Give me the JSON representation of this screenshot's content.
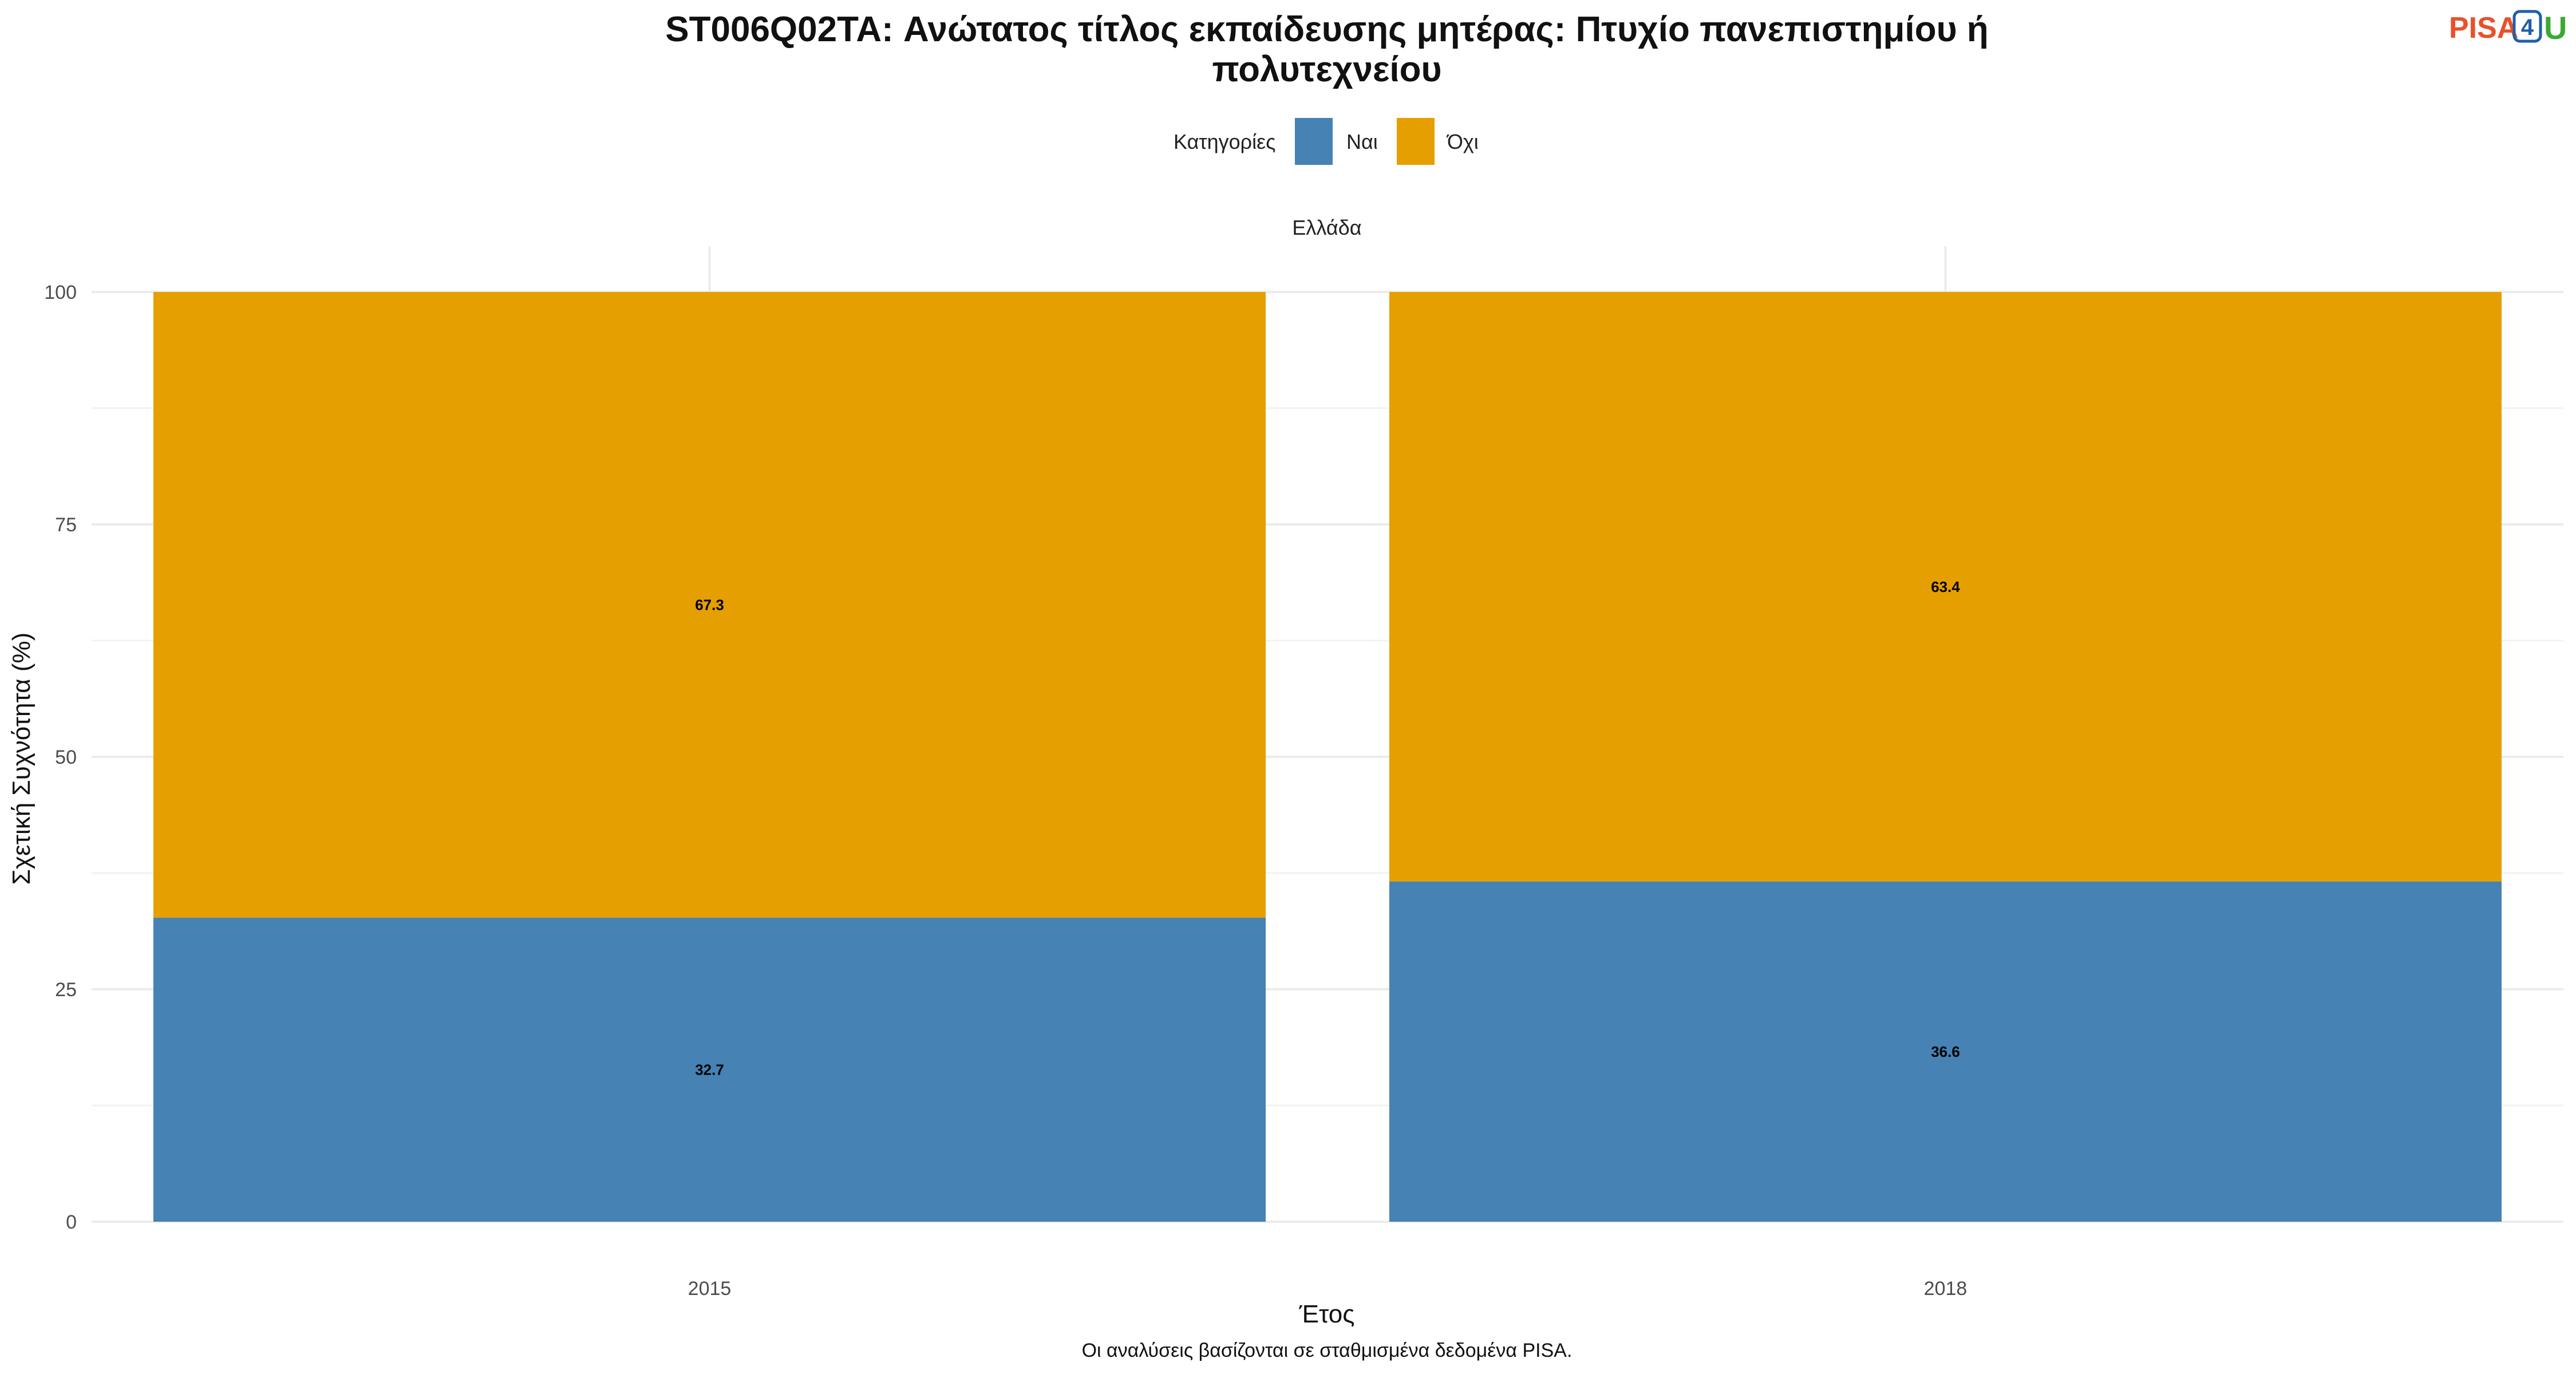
{
  "title_line1": "ST006Q02TA: Ανώτατος τίτλος εκπαίδευσης μητέρας: Πτυχίο πανεπιστημίου ή",
  "title_line2": "πολυτεχνείου",
  "logo": {
    "pisa": "PISA",
    "four": "4",
    "u": "U"
  },
  "legend": {
    "title": "Κατηγορίες",
    "items": [
      "Ναι",
      "Όχι"
    ]
  },
  "facet_label": "Ελλάδα",
  "caption": "Οι αναλύσεις βασίζονται σε σταθμισμένα δεδομένα PISA.",
  "colors": {
    "yes": "#4682b4",
    "no": "#e69f00",
    "grid": "#ebebeb"
  },
  "chart_data": {
    "type": "bar",
    "stacked": true,
    "categories": [
      "2015",
      "2018"
    ],
    "series": [
      {
        "name": "Ναι",
        "values": [
          32.7,
          36.6
        ]
      },
      {
        "name": "Όχι",
        "values": [
          67.3,
          63.4
        ]
      }
    ],
    "xlabel": "Έτος",
    "ylabel": "Σχετική Συχνότητα (%)",
    "ylim": [
      0,
      100
    ],
    "yticks": [
      0,
      25,
      50,
      75,
      100
    ],
    "grid": true,
    "legend_position": "top"
  }
}
